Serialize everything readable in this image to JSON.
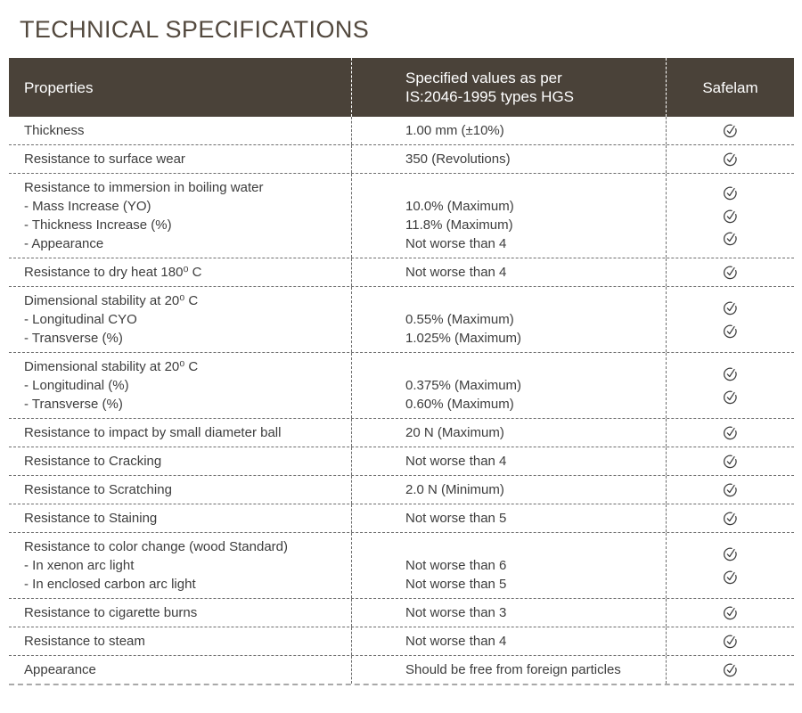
{
  "title": "TECHNICAL SPECIFICATIONS",
  "colors": {
    "header_bg": "#4a4239",
    "header_text": "#ffffff",
    "title_text": "#53493e",
    "body_text": "#3d3d3d",
    "divider": "#6e6e6e",
    "check_icon": "#3a3a3a"
  },
  "table": {
    "header": {
      "properties": "Properties",
      "specified_line1": "Specified values as per",
      "specified_line2": "IS:2046-1995 types HGS",
      "safelam": "Safelam"
    },
    "check_icon_name": "circle-check-icon",
    "rows": [
      {
        "property_lines": [
          "Thickness"
        ],
        "value_lines": [
          "1.00 mm (±10%)"
        ],
        "checks": 1
      },
      {
        "property_lines": [
          "Resistance to surface wear"
        ],
        "value_lines": [
          "350 (Revolutions)"
        ],
        "checks": 1
      },
      {
        "property_lines": [
          "Resistance to immersion in boiling water",
          "- Mass Increase (YO)",
          "- Thickness Increase (%)",
          "- Appearance"
        ],
        "value_lines": [
          "",
          "10.0% (Maximum)",
          "11.8% (Maximum)",
          "Not worse than 4"
        ],
        "checks": 3
      },
      {
        "property_lines": [
          "Resistance to dry heat 180⁰ C"
        ],
        "value_lines": [
          "Not worse than 4"
        ],
        "checks": 1
      },
      {
        "property_lines": [
          "Dimensional stability at 20⁰ C",
          "- Longitudinal CYO",
          "- Transverse (%)"
        ],
        "value_lines": [
          "",
          "0.55% (Maximum)",
          "1.025% (Maximum)"
        ],
        "checks": 2
      },
      {
        "property_lines": [
          "Dimensional stability at 20⁰ C",
          "- Longitudinal (%)",
          "- Transverse (%)"
        ],
        "value_lines": [
          "",
          "0.375% (Maximum)",
          "0.60% (Maximum)"
        ],
        "checks": 2
      },
      {
        "property_lines": [
          "Resistance to impact by small diameter ball"
        ],
        "value_lines": [
          "20 N (Maximum)"
        ],
        "checks": 1
      },
      {
        "property_lines": [
          "Resistance to Cracking"
        ],
        "value_lines": [
          "Not worse than 4"
        ],
        "checks": 1
      },
      {
        "property_lines": [
          "Resistance to Scratching"
        ],
        "value_lines": [
          "2.0 N (Minimum)"
        ],
        "checks": 1
      },
      {
        "property_lines": [
          "Resistance to Staining"
        ],
        "value_lines": [
          "Not worse than 5"
        ],
        "checks": 1
      },
      {
        "property_lines": [
          "Resistance to color change (wood Standard)",
          "- In xenon arc light",
          "- In enclosed carbon arc light"
        ],
        "value_lines": [
          "",
          "Not worse than 6",
          "Not worse than 5"
        ],
        "checks": 2
      },
      {
        "property_lines": [
          "Resistance to cigarette burns"
        ],
        "value_lines": [
          "Not worse than 3"
        ],
        "checks": 1
      },
      {
        "property_lines": [
          "Resistance to steam"
        ],
        "value_lines": [
          "Not worse than 4"
        ],
        "checks": 1
      },
      {
        "property_lines": [
          "Appearance"
        ],
        "value_lines": [
          "Should be free from foreign particles"
        ],
        "checks": 1
      }
    ]
  }
}
